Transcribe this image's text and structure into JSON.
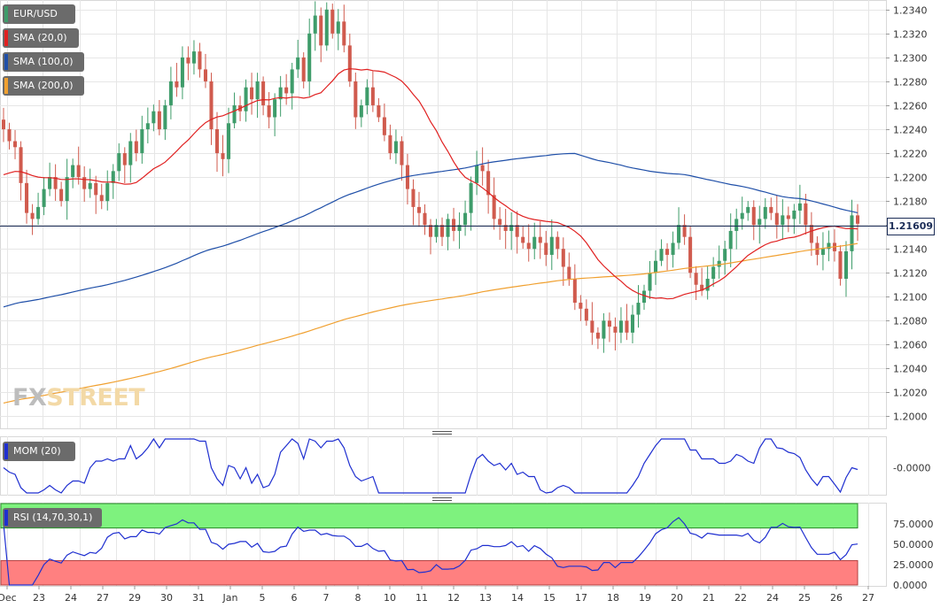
{
  "symbol": "EUR/USD",
  "indicators": {
    "sma20": {
      "label": "SMA (20,0)",
      "color": "#e02020"
    },
    "sma100": {
      "label": "SMA (100,0)",
      "color": "#1f4fa8"
    },
    "sma200": {
      "label": "SMA (200,0)",
      "color": "#f0a030"
    },
    "mom": {
      "label": "MOM (20)",
      "color": "#1f2fd0",
      "value_label": "-0.0000"
    },
    "rsi": {
      "label": "RSI (14,70,30,1)",
      "color": "#1f2fd0",
      "overbought_color": "#7ef27e",
      "oversold_color": "#ff8080"
    }
  },
  "current_price_label": "1.21609",
  "watermark": {
    "part1": "FX",
    "part2": "STREET"
  },
  "colors": {
    "up_candle": "#3e9c6a",
    "down_candle": "#d05b4e",
    "price_line": "#1c2d57",
    "grid": "#e6e6e6"
  },
  "chart_data": {
    "type": "candlestick",
    "x_tick_labels": [
      "Dec",
      "23",
      "24",
      "27",
      "29",
      "30",
      "31",
      "Jan",
      "5",
      "6",
      "7",
      "8",
      "10",
      "11",
      "12",
      "13",
      "14",
      "15",
      "17",
      "18",
      "19",
      "20",
      "21",
      "22",
      "24",
      "25",
      "26",
      "27"
    ],
    "price_axis": {
      "min": 1.199,
      "max": 1.2348,
      "ticks": [
        "1.2000",
        "1.2020",
        "1.2040",
        "1.2060",
        "1.2080",
        "1.2100",
        "1.2120",
        "1.2140",
        "1.2160",
        "1.2180",
        "1.2200",
        "1.2220",
        "1.2240",
        "1.2260",
        "1.2280",
        "1.2300",
        "1.2320",
        "1.2340"
      ]
    },
    "current_price": 1.21609,
    "close": [
      1.224,
      1.223,
      1.2225,
      1.2195,
      1.217,
      1.2165,
      1.2175,
      1.219,
      1.22,
      1.219,
      1.218,
      1.22,
      1.221,
      1.22,
      1.219,
      1.2195,
      1.2185,
      1.218,
      1.2195,
      1.2205,
      1.222,
      1.221,
      1.223,
      1.222,
      1.224,
      1.2245,
      1.2255,
      1.224,
      1.226,
      1.228,
      1.2275,
      1.23,
      1.2295,
      1.2305,
      1.229,
      1.228,
      1.224,
      1.222,
      1.2215,
      1.2245,
      1.226,
      1.2255,
      1.2275,
      1.2265,
      1.228,
      1.226,
      1.225,
      1.2265,
      1.2275,
      1.227,
      1.229,
      1.23,
      1.228,
      1.232,
      1.2335,
      1.231,
      1.234,
      1.232,
      1.233,
      1.231,
      1.228,
      1.225,
      1.226,
      1.2275,
      1.226,
      1.225,
      1.2235,
      1.222,
      1.223,
      1.221,
      1.219,
      1.2175,
      1.217,
      1.216,
      1.215,
      1.216,
      1.215,
      1.2165,
      1.2155,
      1.216,
      1.217,
      1.2195,
      1.221,
      1.2205,
      1.2185,
      1.2165,
      1.216,
      1.2155,
      1.216,
      1.215,
      1.2145,
      1.214,
      1.215,
      1.2145,
      1.2135,
      1.215,
      1.214,
      1.2125,
      1.2115,
      1.2095,
      1.209,
      1.208,
      1.207,
      1.2065,
      1.208,
      1.2075,
      1.207,
      1.208,
      1.207,
      1.2085,
      1.2095,
      1.2105,
      1.212,
      1.213,
      1.214,
      1.2135,
      1.2145,
      1.216,
      1.215,
      1.212,
      1.211,
      1.2105,
      1.2115,
      1.2125,
      1.213,
      1.214,
      1.2155,
      1.2165,
      1.217,
      1.2175,
      1.216,
      1.2165,
      1.2175,
      1.217,
      1.216,
      1.2168,
      1.2165,
      1.2172,
      1.2178,
      1.216,
      1.2145,
      1.2135,
      1.214,
      1.2145,
      1.2138,
      1.2115,
      1.2138,
      1.2168,
      1.2161
    ]
  }
}
